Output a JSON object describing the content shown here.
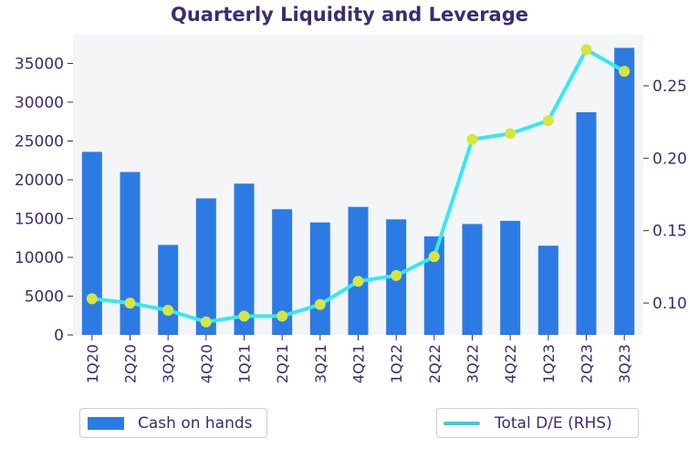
{
  "chart_data": {
    "type": "bar",
    "title": "Quarterly Liquidity and Leverage",
    "categories": [
      "1Q20",
      "2Q20",
      "3Q20",
      "4Q20",
      "1Q21",
      "2Q21",
      "3Q21",
      "4Q21",
      "1Q22",
      "2Q22",
      "3Q22",
      "4Q22",
      "1Q23",
      "2Q23",
      "3Q23"
    ],
    "series": [
      {
        "name": "Cash on hands",
        "type": "bar",
        "axis": "left",
        "values": [
          23600,
          21000,
          11600,
          17600,
          19500,
          16200,
          14500,
          16500,
          14900,
          12700,
          14300,
          14700,
          11500,
          28700,
          37000
        ]
      },
      {
        "name": "Total D/E (RHS)",
        "type": "line",
        "axis": "right",
        "values": [
          0.103,
          0.1,
          0.095,
          0.087,
          0.091,
          0.091,
          0.099,
          0.115,
          0.119,
          0.132,
          0.213,
          0.217,
          0.226,
          0.275,
          0.26
        ]
      }
    ],
    "y_left": {
      "ylim": [
        0,
        38700
      ],
      "ticks": [
        0,
        5000,
        10000,
        15000,
        20000,
        25000,
        30000,
        35000
      ]
    },
    "y_right": {
      "ylim": [
        0.078,
        0.2853
      ],
      "ticks": [
        "0.10",
        "0.15",
        "0.20",
        "0.25"
      ]
    },
    "legend_position": "bottom",
    "grid": false,
    "colors": {
      "bar": "#2c7be5",
      "line": "#36e8f0",
      "marker": "#d7e63a",
      "plot_bg": "#f3f5f6",
      "text": "#3d2c6e"
    }
  },
  "legend": {
    "bar_label": "Cash on hands",
    "line_label": "Total D/E (RHS)"
  }
}
